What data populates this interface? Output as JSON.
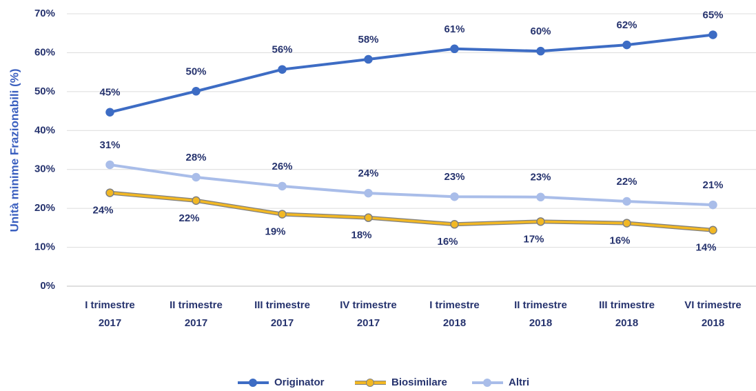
{
  "chart_data": {
    "type": "line",
    "y_label": "Unità minime Frazionabili (%)",
    "categories": [
      "I trimestre 2017",
      "II trimestre 2017",
      "III trimestre 2017",
      "IV trimestre 2017",
      "I trimestre 2018",
      "II trimestre 2018",
      "III trimestre 2018",
      "VI trimestre 2018"
    ],
    "series": [
      {
        "name": "Originator",
        "color": "#3d6cc4",
        "values": [
          44.7,
          50.1,
          55.7,
          58.3,
          61,
          60.4,
          62,
          64.6
        ],
        "value_labels": [
          "45%",
          "50%",
          "56%",
          "58%",
          "61%",
          "60%",
          "62%",
          "65%"
        ],
        "label_position": "above"
      },
      {
        "name": "Biosimilare",
        "color": "#f2b824",
        "values": [
          24,
          22,
          18.5,
          17.6,
          15.9,
          16.6,
          16.2,
          14.4
        ],
        "value_labels": [
          "24%",
          "22%",
          "19%",
          "18%",
          "16%",
          "17%",
          "16%",
          "14%"
        ],
        "label_position": "below"
      },
      {
        "name": "Altri",
        "color": "#a9bde9",
        "values": [
          31.2,
          28,
          25.7,
          23.9,
          23,
          22.9,
          21.8,
          20.9
        ],
        "value_labels": [
          "31%",
          "28%",
          "26%",
          "24%",
          "23%",
          "23%",
          "22%",
          "21%"
        ],
        "label_position": "above"
      }
    ],
    "ylim": [
      0,
      70
    ],
    "yticks": [
      {
        "value": 0,
        "label": "0%"
      },
      {
        "value": 10,
        "label": "10%"
      },
      {
        "value": 20,
        "label": "20%"
      },
      {
        "value": 30,
        "label": "30%"
      },
      {
        "value": 40,
        "label": "40%"
      },
      {
        "value": 50,
        "label": "50%"
      },
      {
        "value": 60,
        "label": "60%"
      },
      {
        "value": 70,
        "label": "70%"
      }
    ],
    "grid": true,
    "legend": "bottom"
  }
}
